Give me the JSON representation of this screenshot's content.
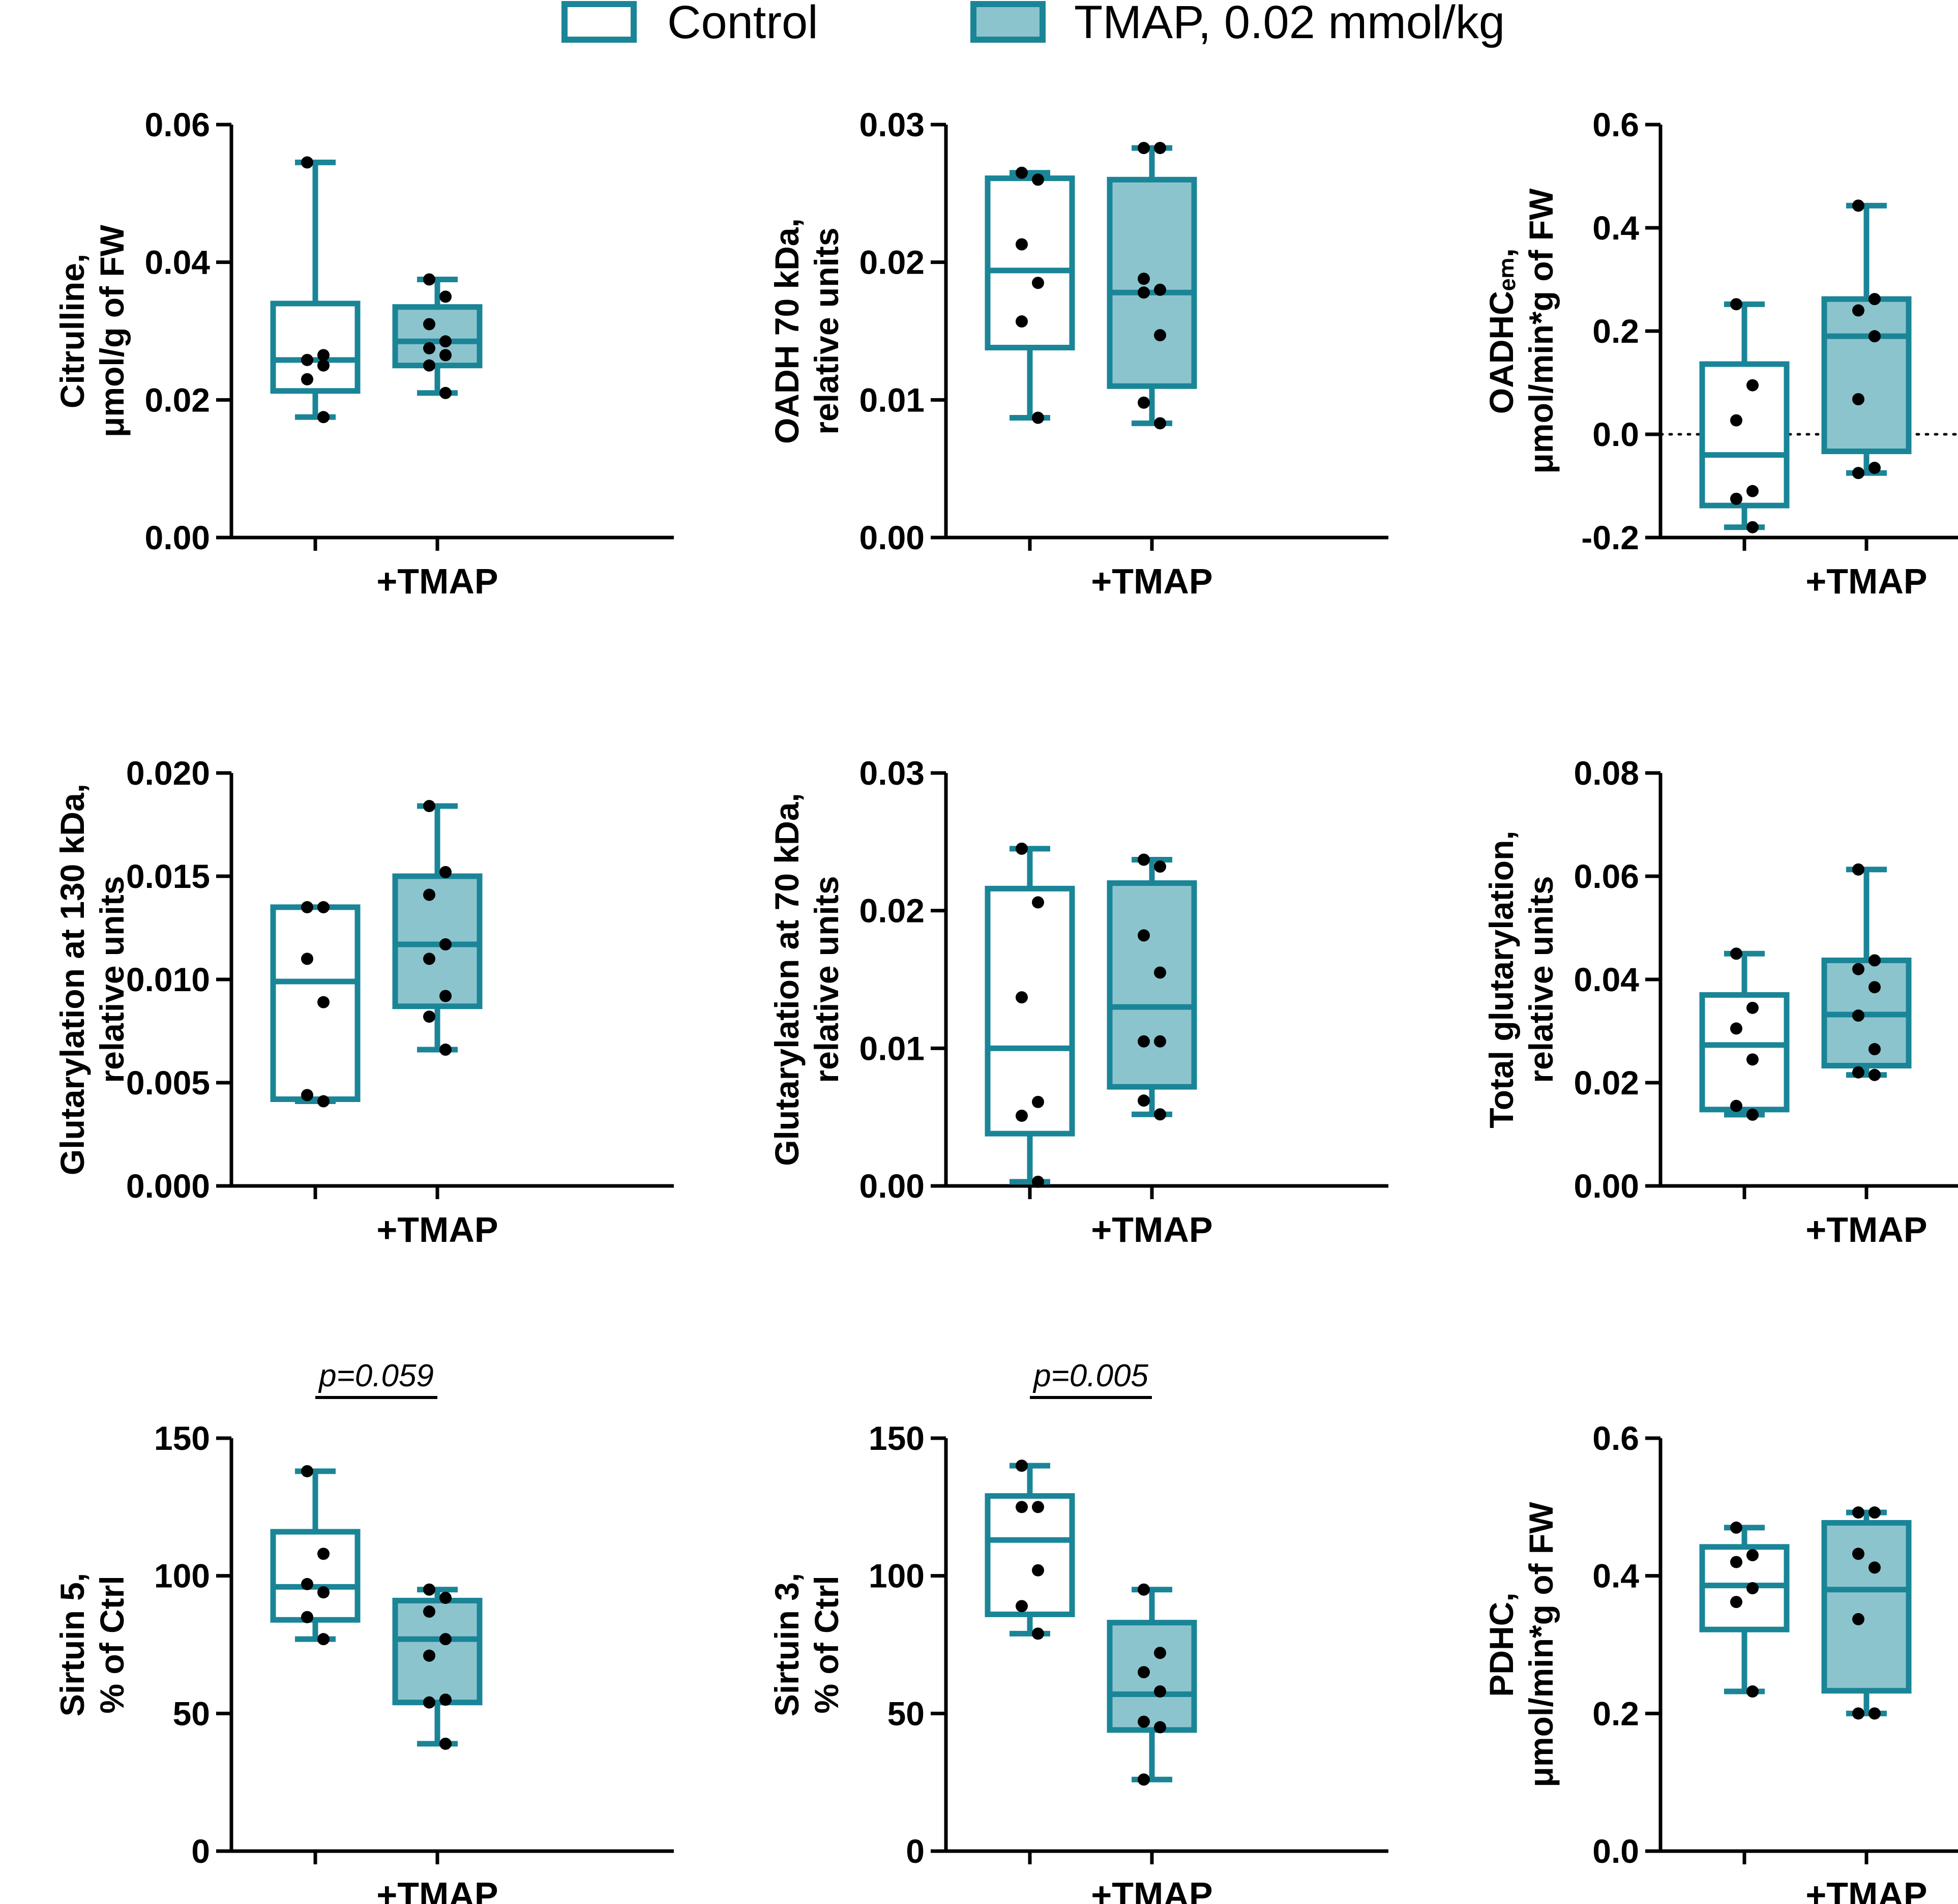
{
  "colors": {
    "box_stroke": "#1a8597",
    "tmap_fill": "#8cc4ce",
    "control_fill": "#ffffff",
    "axis": "#000000",
    "dot": "#000000"
  },
  "legend": {
    "control_label": "Control",
    "tmap_label": "TMAP, 0.02 mmol/kg"
  },
  "chart_data": [
    {
      "type": "box",
      "ylabel_lines": [
        "Citrulline,",
        "μmol/g of FW"
      ],
      "ylim": [
        0,
        0.06
      ],
      "yticks": [
        0,
        0.02,
        0.04,
        0.06
      ],
      "ytick_labels": [
        "0.00",
        "0.02",
        "0.04",
        "0.06"
      ],
      "categories": [
        "",
        "+TMAP"
      ],
      "zero_line": false,
      "annotation": null,
      "series": [
        {
          "name": "Control",
          "whisker_low": 0.0175,
          "q1": 0.0213,
          "median": 0.0258,
          "q3": 0.034,
          "whisker_high": 0.0545,
          "points": [
            0.0545,
            0.0265,
            0.0258,
            0.025,
            0.023,
            0.0175
          ]
        },
        {
          "name": "TMAP, 0.02 mmol/kg",
          "whisker_low": 0.021,
          "q1": 0.025,
          "median": 0.0285,
          "q3": 0.0335,
          "whisker_high": 0.0375,
          "points": [
            0.0375,
            0.035,
            0.031,
            0.0285,
            0.0275,
            0.0265,
            0.025,
            0.021
          ]
        }
      ]
    },
    {
      "type": "box",
      "ylabel_lines": [
        "OADH 70 kDa,",
        "relative units"
      ],
      "ylim": [
        0,
        0.03
      ],
      "yticks": [
        0,
        0.01,
        0.02,
        0.03
      ],
      "ytick_labels": [
        "0.00",
        "0.01",
        "0.02",
        "0.03"
      ],
      "categories": [
        "",
        "+TMAP"
      ],
      "zero_line": false,
      "annotation": null,
      "series": [
        {
          "name": "Control",
          "whisker_low": 0.0087,
          "q1": 0.0138,
          "median": 0.0194,
          "q3": 0.0261,
          "whisker_high": 0.0265,
          "points": [
            0.0265,
            0.026,
            0.0213,
            0.0185,
            0.0157,
            0.0087
          ]
        },
        {
          "name": "TMAP, 0.02 mmol/kg",
          "whisker_low": 0.0083,
          "q1": 0.011,
          "median": 0.0178,
          "q3": 0.026,
          "whisker_high": 0.0283,
          "points": [
            0.0283,
            0.0283,
            0.0188,
            0.018,
            0.0178,
            0.0147,
            0.0098,
            0.0083
          ]
        }
      ]
    },
    {
      "type": "box",
      "ylabel_lines": [
        "OADHCₑₘ,",
        "μmol/min*g of FW"
      ],
      "ylim": [
        -0.2,
        0.6
      ],
      "yticks": [
        -0.2,
        0,
        0.2,
        0.4,
        0.6
      ],
      "ytick_labels": [
        "-0.2",
        "0.0",
        "0.2",
        "0.4",
        "0.6"
      ],
      "categories": [
        "",
        "+TMAP"
      ],
      "zero_line": true,
      "annotation": null,
      "series": [
        {
          "name": "Control",
          "whisker_low": -0.18,
          "q1": -0.138,
          "median": -0.04,
          "q3": 0.136,
          "whisker_high": 0.252,
          "points": [
            0.252,
            0.095,
            0.027,
            -0.11,
            -0.125,
            -0.18
          ]
        },
        {
          "name": "TMAP, 0.02 mmol/kg",
          "whisker_low": -0.075,
          "q1": -0.033,
          "median": 0.19,
          "q3": 0.262,
          "whisker_high": 0.443,
          "points": [
            0.443,
            0.262,
            0.24,
            0.19,
            0.068,
            -0.065,
            -0.075
          ]
        }
      ]
    },
    {
      "type": "box",
      "ylabel_lines": [
        "Glutarylation at 130 kDa,",
        "relative units"
      ],
      "ylim": [
        0,
        0.02
      ],
      "yticks": [
        0,
        0.005,
        0.01,
        0.015,
        0.02
      ],
      "ytick_labels": [
        "0.000",
        "0.005",
        "0.010",
        "0.015",
        "0.020"
      ],
      "categories": [
        "",
        "+TMAP"
      ],
      "zero_line": false,
      "annotation": null,
      "series": [
        {
          "name": "Control",
          "whisker_low": 0.0041,
          "q1": 0.0042,
          "median": 0.0099,
          "q3": 0.0135,
          "whisker_high": 0.0135,
          "points": [
            0.0135,
            0.0135,
            0.011,
            0.0089,
            0.0044,
            0.0041
          ]
        },
        {
          "name": "TMAP, 0.02 mmol/kg",
          "whisker_low": 0.0066,
          "q1": 0.0087,
          "median": 0.0117,
          "q3": 0.015,
          "whisker_high": 0.0184,
          "points": [
            0.0184,
            0.0152,
            0.0141,
            0.0117,
            0.011,
            0.0092,
            0.0082,
            0.0066
          ]
        }
      ]
    },
    {
      "type": "box",
      "ylabel_lines": [
        "Glutarylation at 70 kDa,",
        "relative units"
      ],
      "ylim": [
        0,
        0.03
      ],
      "yticks": [
        0,
        0.01,
        0.02,
        0.03
      ],
      "ytick_labels": [
        "0.00",
        "0.01",
        "0.02",
        "0.03"
      ],
      "categories": [
        "",
        "+TMAP"
      ],
      "zero_line": false,
      "annotation": null,
      "series": [
        {
          "name": "Control",
          "whisker_low": 0.0003,
          "q1": 0.0038,
          "median": 0.01,
          "q3": 0.0216,
          "whisker_high": 0.0245,
          "points": [
            0.0245,
            0.0206,
            0.0137,
            0.0061,
            0.0051,
            0.0003
          ]
        },
        {
          "name": "TMAP, 0.02 mmol/kg",
          "whisker_low": 0.0052,
          "q1": 0.0072,
          "median": 0.013,
          "q3": 0.022,
          "whisker_high": 0.0237,
          "points": [
            0.0237,
            0.0232,
            0.0182,
            0.0155,
            0.0105,
            0.0105,
            0.0062,
            0.0052
          ]
        }
      ]
    },
    {
      "type": "box",
      "ylabel_lines": [
        "Total glutarylation,",
        "relative units"
      ],
      "ylim": [
        0,
        0.08
      ],
      "yticks": [
        0,
        0.02,
        0.04,
        0.06,
        0.08
      ],
      "ytick_labels": [
        "0.00",
        "0.02",
        "0.04",
        "0.06",
        "0.08"
      ],
      "categories": [
        "",
        "+TMAP"
      ],
      "zero_line": false,
      "annotation": null,
      "series": [
        {
          "name": "Control",
          "whisker_low": 0.0138,
          "q1": 0.0148,
          "median": 0.0273,
          "q3": 0.037,
          "whisker_high": 0.045,
          "points": [
            0.045,
            0.0345,
            0.0305,
            0.0245,
            0.0155,
            0.0138
          ]
        },
        {
          "name": "TMAP, 0.02 mmol/kg",
          "whisker_low": 0.0215,
          "q1": 0.0233,
          "median": 0.0332,
          "q3": 0.0437,
          "whisker_high": 0.0613,
          "points": [
            0.0613,
            0.0437,
            0.042,
            0.0385,
            0.033,
            0.0265,
            0.022,
            0.0215
          ]
        }
      ]
    },
    {
      "type": "box",
      "ylabel_lines": [
        "Sirtuin 5,",
        "% of Ctrl"
      ],
      "ylim": [
        0,
        150
      ],
      "yticks": [
        0,
        50,
        100,
        150
      ],
      "ytick_labels": [
        "0",
        "50",
        "100",
        "150"
      ],
      "categories": [
        "",
        "+TMAP"
      ],
      "zero_line": false,
      "annotation": "p=0.059",
      "series": [
        {
          "name": "Control",
          "whisker_low": 77,
          "q1": 84,
          "median": 96,
          "q3": 116,
          "whisker_high": 138,
          "points": [
            138,
            108,
            97,
            94,
            85,
            77
          ]
        },
        {
          "name": "TMAP, 0.02 mmol/kg",
          "whisker_low": 39,
          "q1": 54,
          "median": 77,
          "q3": 91,
          "whisker_high": 95,
          "points": [
            95,
            92,
            87,
            77,
            71,
            55,
            54,
            39
          ]
        }
      ]
    },
    {
      "type": "box",
      "ylabel_lines": [
        "Sirtuin 3,",
        "% of Ctrl"
      ],
      "ylim": [
        0,
        150
      ],
      "yticks": [
        0,
        50,
        100,
        150
      ],
      "ytick_labels": [
        "0",
        "50",
        "100",
        "150"
      ],
      "categories": [
        "",
        "+TMAP"
      ],
      "zero_line": false,
      "annotation": "p=0.005",
      "series": [
        {
          "name": "Control",
          "whisker_low": 79,
          "q1": 86,
          "median": 113,
          "q3": 129,
          "whisker_high": 140,
          "points": [
            140,
            125,
            125,
            102,
            89,
            79
          ]
        },
        {
          "name": "TMAP, 0.02 mmol/kg",
          "whisker_low": 26,
          "q1": 44,
          "median": 57,
          "q3": 83,
          "whisker_high": 95,
          "points": [
            95,
            72,
            65,
            58,
            47,
            45,
            26
          ]
        }
      ]
    },
    {
      "type": "box",
      "ylabel_lines": [
        "PDHC,",
        "μmol/min*g of FW"
      ],
      "ylim": [
        0,
        0.6
      ],
      "yticks": [
        0,
        0.2,
        0.4,
        0.6
      ],
      "ytick_labels": [
        "0.0",
        "0.2",
        "0.4",
        "0.6"
      ],
      "categories": [
        "",
        "+TMAP"
      ],
      "zero_line": false,
      "annotation": null,
      "series": [
        {
          "name": "Control",
          "whisker_low": 0.232,
          "q1": 0.322,
          "median": 0.386,
          "q3": 0.442,
          "whisker_high": 0.47,
          "points": [
            0.47,
            0.43,
            0.42,
            0.382,
            0.362,
            0.232
          ]
        },
        {
          "name": "TMAP, 0.02 mmol/kg",
          "whisker_low": 0.2,
          "q1": 0.233,
          "median": 0.38,
          "q3": 0.477,
          "whisker_high": 0.492,
          "points": [
            0.492,
            0.492,
            0.432,
            0.412,
            0.337,
            0.2,
            0.2
          ]
        }
      ]
    }
  ]
}
